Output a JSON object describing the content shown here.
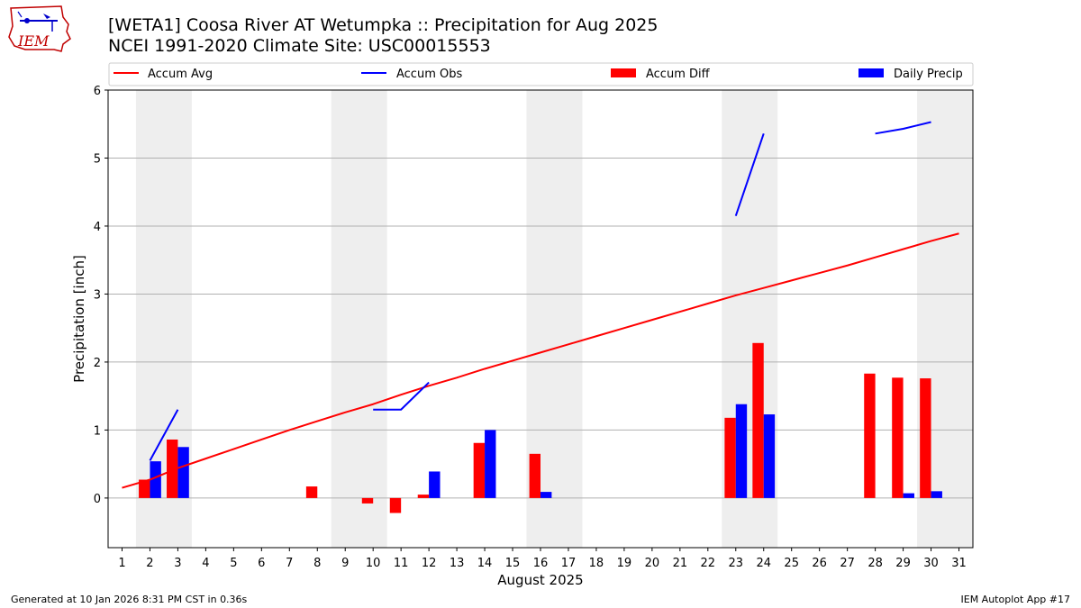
{
  "header": {
    "title_line1": "[WETA1] Coosa River  AT Wetumpka :: Precipitation for Aug 2025",
    "title_line2": "NCEI 1991-2020 Climate Site: USC00015553",
    "logo_text": "IEM"
  },
  "footer": {
    "left": "Generated at 10 Jan 2026 8:31 PM CST in 0.36s",
    "right": "IEM Autoplot App #17"
  },
  "colors": {
    "accum_avg": "#ff0000",
    "accum_obs": "#0000ff",
    "accum_diff": "#ff0000",
    "daily_precip": "#0000ff",
    "weekend_shade": "#eeeeee",
    "grid": "#b0b0b0"
  },
  "chart_data": {
    "type": "bar",
    "title": "[WETA1] Coosa River  AT Wetumpka :: Precipitation for Aug 2025",
    "subtitle": "NCEI 1991-2020 Climate Site: USC00015553",
    "xlabel": "August 2025",
    "ylabel": "Precipitation [inch]",
    "xlim": [
      0.5,
      31.5
    ],
    "ylim": [
      -0.73,
      6.0
    ],
    "yticks": [
      0,
      1,
      2,
      3,
      4,
      5,
      6
    ],
    "x": [
      1,
      2,
      3,
      4,
      5,
      6,
      7,
      8,
      9,
      10,
      11,
      12,
      13,
      14,
      15,
      16,
      17,
      18,
      19,
      20,
      21,
      22,
      23,
      24,
      25,
      26,
      27,
      28,
      29,
      30,
      31
    ],
    "grid": "y",
    "legend_position": "top",
    "shaded_days": [
      [
        1.5,
        3.5
      ],
      [
        8.5,
        10.5
      ],
      [
        15.5,
        17.5
      ],
      [
        22.5,
        24.5
      ],
      [
        29.5,
        31.5
      ]
    ],
    "series": [
      {
        "name": "Accum Avg",
        "kind": "line",
        "values": [
          0.15,
          0.27,
          0.44,
          0.58,
          0.72,
          0.86,
          1.0,
          1.13,
          1.26,
          1.38,
          1.52,
          1.65,
          1.77,
          1.9,
          2.02,
          2.14,
          2.26,
          2.38,
          2.5,
          2.62,
          2.74,
          2.86,
          2.98,
          3.09,
          3.2,
          3.31,
          3.42,
          3.54,
          3.66,
          3.78,
          3.89
        ]
      },
      {
        "name": "Accum Obs",
        "kind": "line",
        "values": [
          null,
          0.55,
          1.3,
          null,
          null,
          null,
          null,
          null,
          null,
          1.3,
          1.3,
          1.7,
          null,
          null,
          null,
          null,
          null,
          null,
          null,
          null,
          null,
          null,
          4.15,
          5.36,
          null,
          null,
          null,
          5.36,
          5.43,
          5.53,
          null
        ]
      },
      {
        "name": "Accum Diff",
        "kind": "bar",
        "values": [
          0,
          0.27,
          0.86,
          0,
          0,
          0,
          0,
          0.17,
          0,
          -0.08,
          -0.22,
          0.05,
          0,
          0.81,
          0,
          0.65,
          0,
          0,
          0,
          0,
          0,
          0,
          1.18,
          2.28,
          0,
          0,
          0,
          1.83,
          1.77,
          1.76,
          0
        ]
      },
      {
        "name": "Daily Precip",
        "kind": "bar",
        "values": [
          0,
          0.54,
          0.75,
          0,
          0,
          0,
          0,
          0,
          0,
          0,
          0,
          0.39,
          0,
          1.0,
          0,
          0.09,
          0,
          0,
          0,
          0,
          0,
          0,
          1.38,
          1.23,
          0,
          0,
          0,
          0,
          0.07,
          0.1,
          0
        ]
      }
    ]
  }
}
